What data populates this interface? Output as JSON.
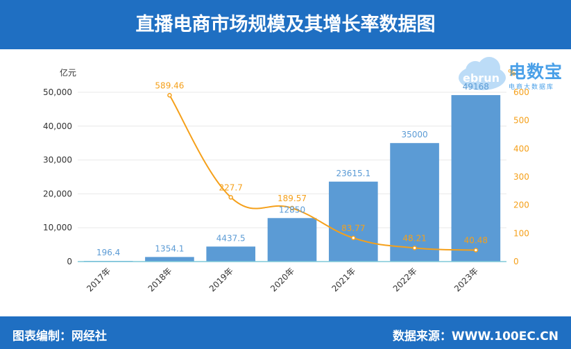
{
  "header": {
    "title": "直播电商市场规模及其增长率数据图"
  },
  "footer": {
    "left": "图表编制：网经社",
    "right": "数据来源：WWW.100EC.CN"
  },
  "logo": {
    "main": "电数宝",
    "sub": "电商大数据库",
    "cloud_text": "ebrun"
  },
  "colors": {
    "header_bg": "#1f6fc2",
    "bar": "#5b9bd5",
    "line": "#f5a01a"
  },
  "chart_data": {
    "type": "bar",
    "categories": [
      "2017年",
      "2018年",
      "2019年",
      "2020年",
      "2021年",
      "2022年",
      "2023年"
    ],
    "series": [
      {
        "type": "bar",
        "values": [
          196.4,
          1354.1,
          4437.5,
          12850,
          23615.1,
          35000,
          49168
        ],
        "labels": [
          "196.4",
          "1354.1",
          "4437.5",
          "12850",
          "23615.1",
          "35000",
          "49168"
        ]
      },
      {
        "type": "line",
        "axis": "right",
        "values": [
          null,
          589.46,
          227.7,
          189.57,
          83.77,
          48.21,
          40.48
        ],
        "labels": [
          "",
          "589.46",
          "227.7",
          "189.57",
          "83.77",
          "48.21",
          "40.48"
        ]
      }
    ],
    "ylabel_left": "亿元",
    "ylabel_right": "%",
    "ylim_left": [
      0,
      50000
    ],
    "ylim_right": [
      0,
      600
    ],
    "yticks_left": [
      "0",
      "10,000",
      "20,000",
      "30,000",
      "40,000",
      "50,000"
    ],
    "yticks_right": [
      "0",
      "100",
      "200",
      "300",
      "400",
      "500",
      "600"
    ],
    "grid": true
  }
}
